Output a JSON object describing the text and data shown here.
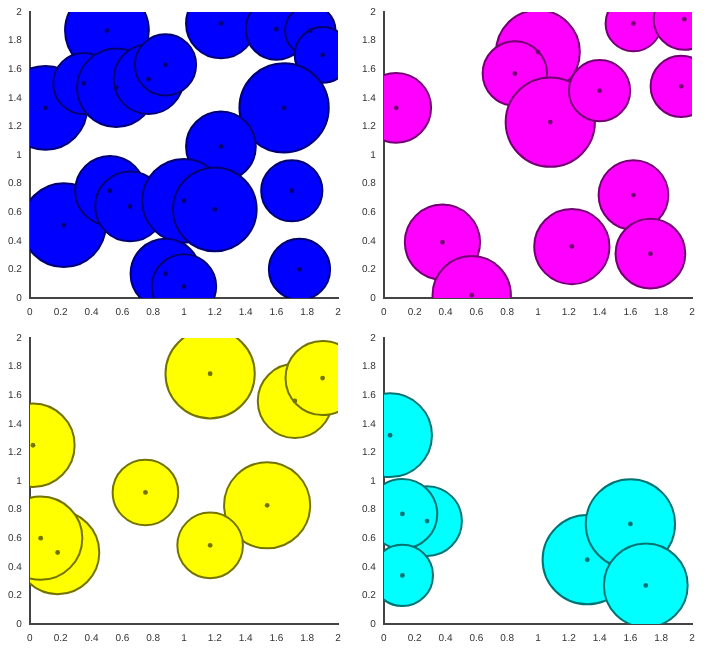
{
  "chart_data": [
    {
      "type": "bubble",
      "xlim": [
        0,
        2
      ],
      "ylim": [
        0,
        2
      ],
      "xticks": [
        0,
        0.2,
        0.4,
        0.6,
        0.8,
        1,
        1.2,
        1.4,
        1.6,
        1.8,
        2
      ],
      "yticks": [
        0,
        0.2,
        0.4,
        0.6,
        0.8,
        1,
        1.2,
        1.4,
        1.6,
        1.8,
        2
      ],
      "grid": false,
      "legend": false,
      "marker": "circle",
      "series": [
        {
          "color": "#0000ff",
          "x": [
            0.1,
            0.5,
            0.35,
            0.56,
            0.77,
            0.88,
            1.24,
            1.6,
            1.82,
            1.9,
            1.65,
            1.24,
            0.22,
            0.52,
            0.65,
            1.0,
            1.2,
            0.88,
            1.0,
            1.7,
            1.75
          ],
          "values": [
            1.33,
            1.87,
            1.5,
            1.47,
            1.53,
            1.63,
            1.92,
            1.88,
            1.87,
            1.7,
            1.33,
            1.06,
            0.51,
            0.75,
            0.64,
            0.68,
            0.62,
            0.17,
            0.08,
            0.75,
            0.2
          ],
          "sizes": [
            0.88,
            0.88,
            0.47,
            0.77,
            0.61,
            0.47,
            0.61,
            0.47,
            0.32,
            0.39,
            1,
            0.61,
            0.88,
            0.61,
            0.61,
            0.88,
            0.88,
            0.61,
            0.52,
            0.47,
            0.47
          ]
        }
      ]
    },
    {
      "type": "bubble",
      "xlim": [
        0,
        2
      ],
      "ylim": [
        0,
        2
      ],
      "xticks": [
        0,
        0.2,
        0.4,
        0.6,
        0.8,
        1,
        1.2,
        1.4,
        1.6,
        1.8,
        2
      ],
      "yticks": [
        0,
        0.2,
        0.4,
        0.6,
        0.8,
        1,
        1.2,
        1.4,
        1.6,
        1.8,
        2
      ],
      "grid": false,
      "legend": false,
      "marker": "circle",
      "series": [
        {
          "color": "#ff00ff",
          "x": [
            0.08,
            1.0,
            0.85,
            1.08,
            1.4,
            1.62,
            1.95,
            1.93,
            1.62,
            0.38,
            0.57,
            1.22,
            1.73
          ],
          "values": [
            1.33,
            1.72,
            1.57,
            1.23,
            1.45,
            1.92,
            1.95,
            1.48,
            0.72,
            0.39,
            0.02,
            0.36,
            0.31
          ],
          "sizes": [
            0.61,
            0.88,
            0.52,
            1,
            0.47,
            0.39,
            0.47,
            0.47,
            0.61,
            0.71,
            0.77,
            0.71,
            0.61
          ]
        }
      ]
    },
    {
      "type": "bubble",
      "xlim": [
        0,
        2
      ],
      "ylim": [
        0,
        2
      ],
      "xticks": [
        0,
        0.2,
        0.4,
        0.6,
        0.8,
        1,
        1.2,
        1.4,
        1.6,
        1.8,
        2
      ],
      "yticks": [
        0,
        0.2,
        0.4,
        0.6,
        0.8,
        1,
        1.2,
        1.4,
        1.6,
        1.8,
        2
      ],
      "grid": false,
      "legend": false,
      "marker": "circle",
      "series": [
        {
          "color": "#ffff00",
          "x": [
            0.02,
            1.17,
            1.72,
            1.9,
            0.75,
            1.54,
            1.17,
            0.18,
            0.07
          ],
          "values": [
            1.25,
            1.75,
            1.56,
            1.72,
            0.92,
            0.83,
            0.55,
            0.5,
            0.6
          ],
          "sizes": [
            0.87,
            1,
            0.69,
            0.69,
            0.54,
            0.93,
            0.54,
            0.87,
            0.87
          ]
        }
      ]
    },
    {
      "type": "bubble",
      "xlim": [
        0,
        2
      ],
      "ylim": [
        0,
        2
      ],
      "xticks": [
        0,
        0.2,
        0.4,
        0.6,
        0.8,
        1,
        1.2,
        1.4,
        1.6,
        1.8,
        2
      ],
      "yticks": [
        0,
        0.2,
        0.4,
        0.6,
        0.8,
        1,
        1.2,
        1.4,
        1.6,
        1.8,
        2
      ],
      "grid": false,
      "legend": false,
      "marker": "circle",
      "series": [
        {
          "color": "#00ffff",
          "x": [
            0.04,
            0.28,
            0.12,
            0.12,
            1.32,
            1.6,
            1.7
          ],
          "values": [
            1.32,
            0.72,
            0.77,
            0.34,
            0.45,
            0.7,
            0.27
          ],
          "sizes": [
            0.88,
            0.61,
            0.61,
            0.47,
            1,
            1,
            0.88
          ]
        }
      ]
    }
  ]
}
